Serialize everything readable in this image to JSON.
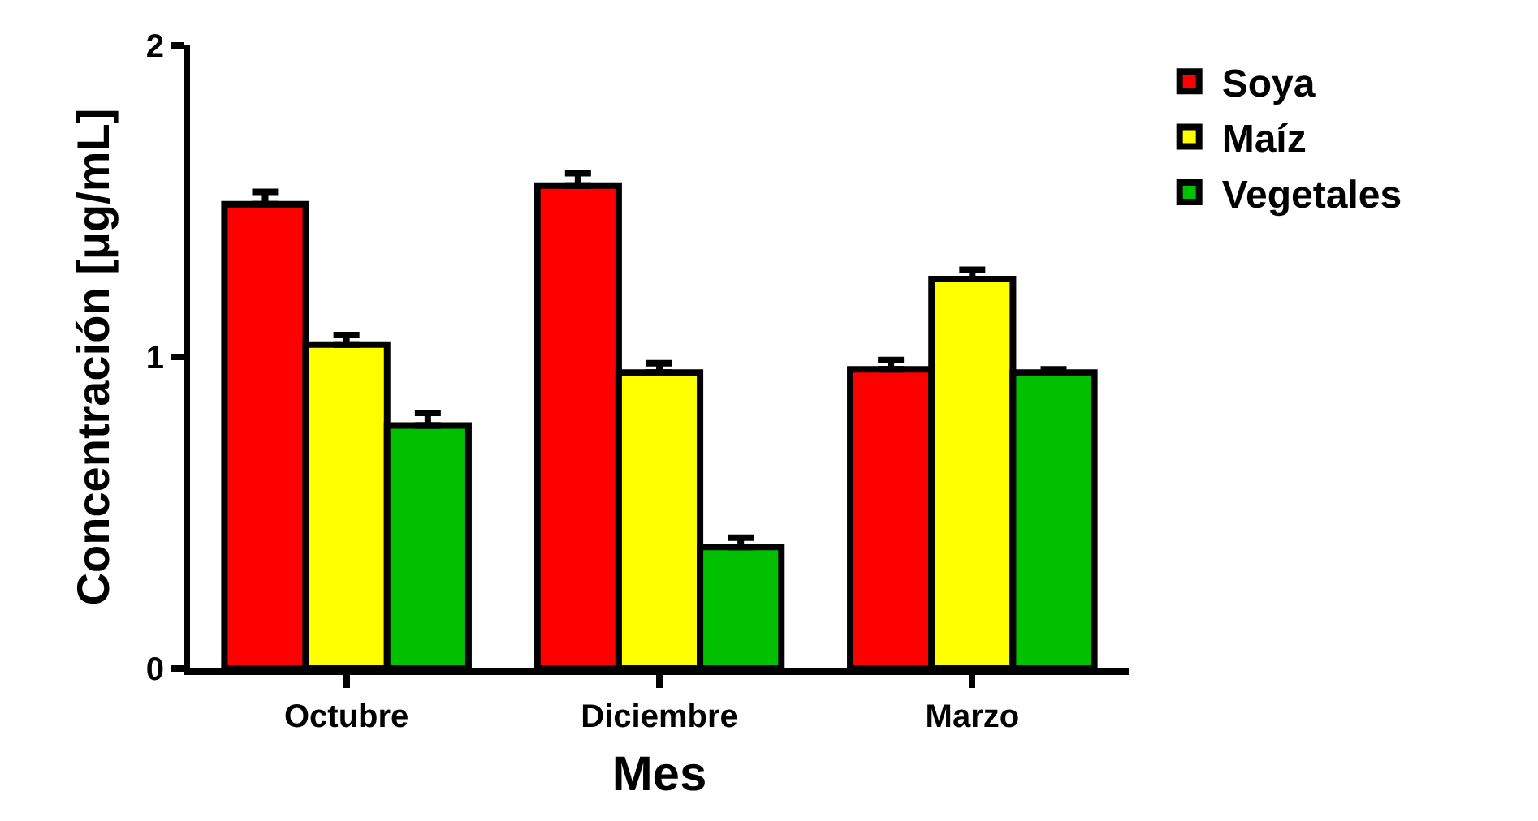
{
  "chart_data": {
    "type": "bar",
    "xlabel": "Mes",
    "ylabel": "Concentración [μg/mL]",
    "categories": [
      "Octubre",
      "Diciembre",
      "Marzo"
    ],
    "series": [
      {
        "name": "Soya",
        "color": "#ff0000",
        "values": [
          1.49,
          1.55,
          0.96
        ],
        "errors": [
          [
            1.49,
            1.53
          ],
          [
            1.55,
            1.59
          ],
          [
            0.96,
            0.99
          ]
        ]
      },
      {
        "name": "Maíz",
        "color": "#ffff00",
        "values": [
          1.04,
          0.95,
          1.25
        ],
        "errors": [
          [
            1.04,
            1.07
          ],
          [
            0.95,
            0.98
          ],
          [
            1.25,
            1.28
          ]
        ]
      },
      {
        "name": "Vegetales",
        "color": "#00c000",
        "values": [
          0.78,
          0.39,
          0.95
        ],
        "errors": [
          [
            0.78,
            0.82
          ],
          [
            0.39,
            0.42
          ],
          [
            0.95,
            0.96
          ]
        ]
      }
    ],
    "ylim": [
      0,
      2
    ],
    "yticks": [
      0,
      1,
      2
    ],
    "legend": "top right"
  }
}
